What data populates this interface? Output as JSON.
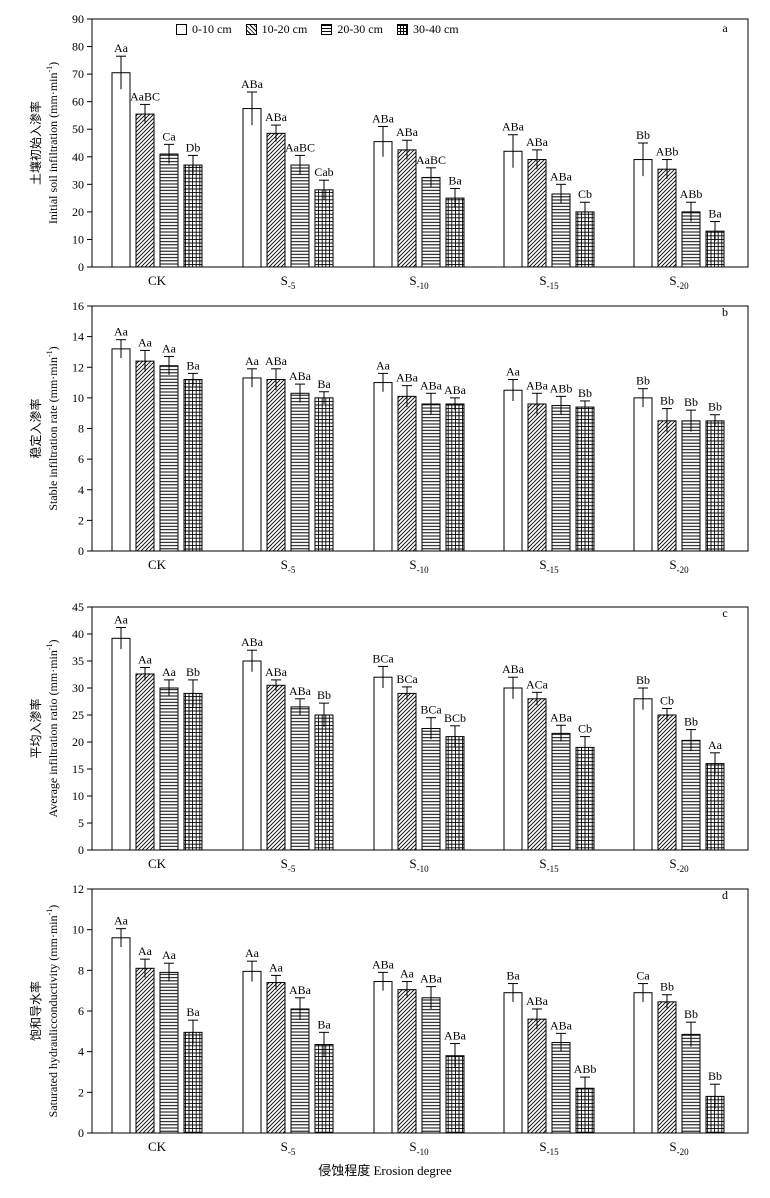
{
  "legend": {
    "items": [
      "0-10 cm",
      "10-20 cm",
      "20-30 cm",
      "30-40 cm"
    ]
  },
  "xaxis_title": "侵蚀程度 Erosion degree",
  "chart_data": [
    {
      "type": "bar",
      "panel": "a",
      "ylabel_cn": "土壤初始入渗率",
      "ylabel": "Initial soil infiltration (mm·min",
      "ylim": [
        0,
        90
      ],
      "yticks": [
        0,
        10,
        20,
        30,
        40,
        50,
        60,
        70,
        80,
        90
      ],
      "categories": [
        "CK",
        "S-5",
        "S-10",
        "S-15",
        "S-20"
      ],
      "series": [
        {
          "name": "0-10 cm",
          "values": [
            70.5,
            57.5,
            45.5,
            42,
            39
          ],
          "errors": [
            6,
            6,
            5.5,
            6,
            6
          ],
          "labels": [
            "Aa",
            "ABa",
            "ABa",
            "ABa",
            "Bb"
          ]
        },
        {
          "name": "10-20 cm",
          "values": [
            55.5,
            48.5,
            42.5,
            39,
            35.5
          ],
          "errors": [
            3.5,
            3,
            3.5,
            3.5,
            3.5
          ],
          "labels": [
            "AaBC",
            "ABa",
            "ABa",
            "ABa",
            "ABb"
          ]
        },
        {
          "name": "20-30 cm",
          "values": [
            41,
            37,
            32.5,
            26.5,
            20
          ],
          "errors": [
            3.5,
            3.5,
            3.5,
            3.5,
            3.5
          ],
          "labels": [
            "Ca",
            "AaBC",
            "AaBC",
            "ABa",
            "ABb"
          ]
        },
        {
          "name": "30-40 cm",
          "values": [
            37,
            28,
            25,
            20,
            13
          ],
          "errors": [
            3.5,
            3.5,
            3.5,
            3.5,
            3.5
          ],
          "labels": [
            "Db",
            "Cab",
            "Ba",
            "Cb",
            "Ba"
          ]
        }
      ]
    },
    {
      "type": "bar",
      "panel": "b",
      "ylabel_cn": "稳定入渗率",
      "ylabel": "Stable infiltration rate (mm·min",
      "ylim": [
        0,
        16
      ],
      "yticks": [
        0,
        2,
        4,
        6,
        8,
        10,
        12,
        14,
        16
      ],
      "categories": [
        "CK",
        "S-5",
        "S-10",
        "S-15",
        "S-20"
      ],
      "series": [
        {
          "name": "0-10 cm",
          "values": [
            13.2,
            11.3,
            11,
            10.5,
            10
          ],
          "errors": [
            0.6,
            0.6,
            0.6,
            0.7,
            0.6
          ],
          "labels": [
            "Aa",
            "Aa",
            "Aa",
            "Aa",
            "Bb"
          ]
        },
        {
          "name": "10-20 cm",
          "values": [
            12.4,
            11.2,
            10.1,
            9.6,
            8.5
          ],
          "errors": [
            0.7,
            0.7,
            0.7,
            0.7,
            0.8
          ],
          "labels": [
            "Aa",
            "ABa",
            "ABa",
            "ABa",
            "Bb"
          ]
        },
        {
          "name": "20-30 cm",
          "values": [
            12.1,
            10.3,
            9.6,
            9.5,
            8.5
          ],
          "errors": [
            0.6,
            0.6,
            0.7,
            0.6,
            0.7
          ],
          "labels": [
            "Aa",
            "ABa",
            "ABa",
            "ABb",
            "Bb"
          ]
        },
        {
          "name": "30-40 cm",
          "values": [
            11.2,
            10,
            9.6,
            9.4,
            8.5
          ],
          "errors": [
            0.4,
            0.4,
            0.4,
            0.4,
            0.4
          ],
          "labels": [
            "Ba",
            "Ba",
            "ABa",
            "Bb",
            "Bb"
          ]
        }
      ]
    },
    {
      "type": "bar",
      "panel": "c",
      "ylabel_cn": "平均入渗率",
      "ylabel": "Average infiltration ratio (mm·min",
      "ylim": [
        0,
        45
      ],
      "yticks": [
        0,
        5,
        10,
        15,
        20,
        25,
        30,
        35,
        40,
        45
      ],
      "categories": [
        "CK",
        "S-5",
        "S-10",
        "S-15",
        "S-20"
      ],
      "series": [
        {
          "name": "0-10 cm",
          "values": [
            39.2,
            35,
            32,
            30,
            28
          ],
          "errors": [
            2,
            2,
            2,
            2,
            2
          ],
          "labels": [
            "Aa",
            "ABa",
            "BCa",
            "ABa",
            "Bb"
          ]
        },
        {
          "name": "10-20 cm",
          "values": [
            32.6,
            30.5,
            29,
            28,
            25
          ],
          "errors": [
            1.2,
            1,
            1.2,
            1.2,
            1.2
          ],
          "labels": [
            "Aa",
            "ABa",
            "BCa",
            "ACa",
            "Cb"
          ]
        },
        {
          "name": "20-30 cm",
          "values": [
            30,
            26.5,
            22.5,
            21.6,
            20.3
          ],
          "errors": [
            1.5,
            1.5,
            2,
            1.5,
            2
          ],
          "labels": [
            "Aa",
            "ABa",
            "BCa",
            "ABa",
            "Bb"
          ]
        },
        {
          "name": "30-40 cm",
          "values": [
            29,
            25,
            21,
            19,
            16
          ],
          "errors": [
            2.5,
            2.2,
            2,
            2,
            2
          ],
          "labels": [
            "Bb",
            "Bb",
            "BCb",
            "Cb",
            "Aa"
          ]
        }
      ]
    },
    {
      "type": "bar",
      "panel": "d",
      "ylabel_cn": "饱和导水率",
      "ylabel": "Saturated hydraulicconductivity (mm·min",
      "ylim": [
        0,
        12
      ],
      "yticks": [
        0,
        2,
        4,
        6,
        8,
        10,
        12
      ],
      "categories": [
        "CK",
        "S-5",
        "S-10",
        "S-15",
        "S-20"
      ],
      "series": [
        {
          "name": "0-10 cm",
          "values": [
            9.6,
            7.95,
            7.45,
            6.9,
            6.9
          ],
          "errors": [
            0.45,
            0.5,
            0.45,
            0.45,
            0.45
          ],
          "labels": [
            "Aa",
            "Aa",
            "ABa",
            "Ba",
            "Ca"
          ]
        },
        {
          "name": "10-20 cm",
          "values": [
            8.1,
            7.4,
            7.05,
            5.6,
            6.45
          ],
          "errors": [
            0.45,
            0.35,
            0.4,
            0.5,
            0.35
          ],
          "labels": [
            "Aa",
            "Aa",
            "Aa",
            "ABa",
            "Bb"
          ]
        },
        {
          "name": "20-30 cm",
          "values": [
            7.9,
            6.1,
            6.65,
            4.45,
            4.85
          ],
          "errors": [
            0.45,
            0.55,
            0.55,
            0.45,
            0.6
          ],
          "labels": [
            "Aa",
            "ABa",
            "ABa",
            "ABa",
            "Bb"
          ]
        },
        {
          "name": "30-40 cm",
          "values": [
            4.95,
            4.35,
            3.8,
            2.2,
            1.8
          ],
          "errors": [
            0.6,
            0.6,
            0.6,
            0.55,
            0.6
          ],
          "labels": [
            "Ba",
            "Ba",
            "ABa",
            "ABb",
            "Bb"
          ]
        }
      ]
    }
  ]
}
